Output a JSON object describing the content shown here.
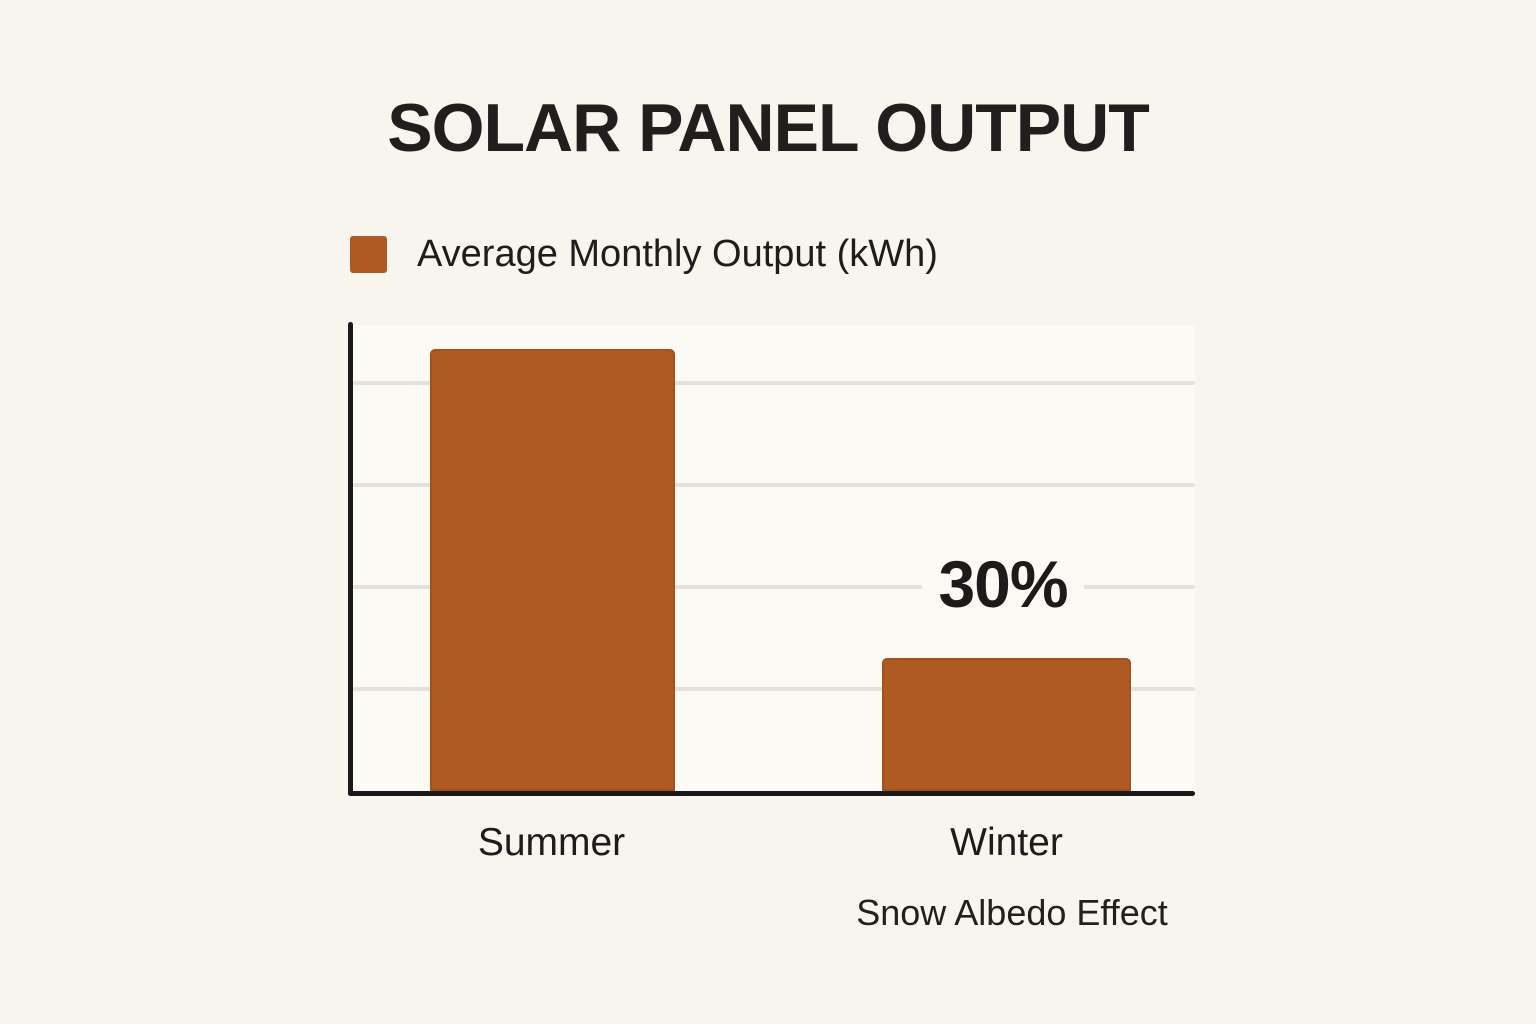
{
  "page": {
    "background_color": "#f7f5ee",
    "title": "SOLAR PANEL OUTPUT"
  },
  "legend": {
    "swatch_color": "#b05a23",
    "label": "Average Monthly Output (kWh)"
  },
  "chart_data": {
    "type": "bar",
    "title": "SOLAR PANEL OUTPUT",
    "series_label": "Average Monthly Output (kWh)",
    "categories": [
      "Summer",
      "Winter"
    ],
    "values": [
      100,
      30
    ],
    "value_unit": "% of summer output (winter bar labeled 30%)",
    "x_sublabel": "Snow Albedo Effect",
    "annotations": [
      {
        "target": "Winter",
        "text": "30%"
      }
    ],
    "bar_color": "#b05a23",
    "axis_color": "#191919",
    "gridline_color": "#e5e2da",
    "grid": true,
    "gridline_count": 4,
    "ylim": [
      0,
      105
    ],
    "y_tick_labels": [],
    "legend_position": "top-left"
  }
}
